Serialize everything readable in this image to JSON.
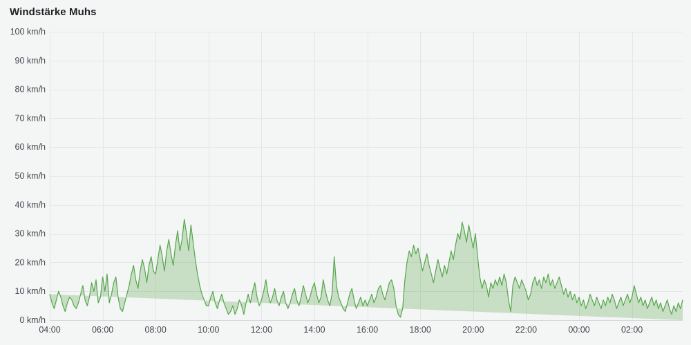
{
  "header": {
    "title": "Windstärke Muhs"
  },
  "colors": {
    "background": "#f4f5f5",
    "grid": "#e4e5e7",
    "axis_line": "#d8d9db",
    "line": "#56a64b",
    "fill_opacity": 0.28,
    "text": "#44474e",
    "title": "#202226"
  },
  "chart_data": {
    "type": "area",
    "title": "Windstärke Muhs",
    "unit": "km/h",
    "ylim": [
      0,
      100
    ],
    "grid": true,
    "legend": "none",
    "step_minutes": 5,
    "y_ticks": [
      {
        "value": 0,
        "label": "0 km/h"
      },
      {
        "value": 10,
        "label": "10 km/h"
      },
      {
        "value": 20,
        "label": "20 km/h"
      },
      {
        "value": 30,
        "label": "30 km/h"
      },
      {
        "value": 40,
        "label": "40 km/h"
      },
      {
        "value": 50,
        "label": "50 km/h"
      },
      {
        "value": 60,
        "label": "60 km/h"
      },
      {
        "value": 70,
        "label": "70 km/h"
      },
      {
        "value": 80,
        "label": "80 km/h"
      },
      {
        "value": 90,
        "label": "90 km/h"
      },
      {
        "value": 100,
        "label": "100 km/h"
      }
    ],
    "x_ticks": [
      {
        "minutes": 0,
        "label": "04:00"
      },
      {
        "minutes": 120,
        "label": "06:00"
      },
      {
        "minutes": 240,
        "label": "08:00"
      },
      {
        "minutes": 360,
        "label": "10:00"
      },
      {
        "minutes": 480,
        "label": "12:00"
      },
      {
        "minutes": 600,
        "label": "14:00"
      },
      {
        "minutes": 720,
        "label": "16:00"
      },
      {
        "minutes": 840,
        "label": "18:00"
      },
      {
        "minutes": 960,
        "label": "20:00"
      },
      {
        "minutes": 1080,
        "label": "22:00"
      },
      {
        "minutes": 1200,
        "label": "00:00"
      },
      {
        "minutes": 1320,
        "label": "02:00"
      }
    ],
    "values": [
      9,
      6,
      4,
      7,
      10,
      8,
      5,
      3,
      6,
      8,
      7,
      5,
      4,
      6,
      9,
      12,
      7,
      5,
      8,
      13,
      10,
      14,
      6,
      8,
      15,
      10,
      16,
      6,
      9,
      13,
      15,
      8,
      4,
      3,
      6,
      9,
      12,
      16,
      19,
      14,
      11,
      17,
      21,
      18,
      13,
      19,
      22,
      17,
      16,
      21,
      26,
      22,
      17,
      24,
      28,
      23,
      19,
      26,
      31,
      24,
      28,
      35,
      30,
      24,
      33,
      27,
      21,
      16,
      12,
      9,
      7,
      5,
      5,
      8,
      10,
      6,
      4,
      7,
      9,
      6,
      4,
      2,
      3,
      5,
      2,
      4,
      7,
      5,
      2,
      6,
      9,
      6,
      10,
      13,
      8,
      5,
      7,
      10,
      14,
      9,
      6,
      8,
      11,
      7,
      5,
      8,
      10,
      6,
      4,
      6,
      9,
      11,
      7,
      5,
      8,
      12,
      9,
      6,
      8,
      11,
      13,
      9,
      6,
      8,
      14,
      10,
      7,
      5,
      9,
      22,
      12,
      8,
      6,
      4,
      3,
      6,
      9,
      11,
      7,
      4,
      6,
      8,
      5,
      7,
      5,
      7,
      9,
      6,
      8,
      11,
      12,
      9,
      7,
      10,
      13,
      14,
      11,
      5,
      2,
      1,
      4,
      14,
      20,
      24,
      22,
      26,
      23,
      25,
      21,
      17,
      20,
      23,
      19,
      16,
      13,
      17,
      21,
      18,
      15,
      19,
      16,
      20,
      24,
      21,
      26,
      30,
      28,
      34,
      31,
      27,
      33,
      29,
      25,
      30,
      22,
      15,
      11,
      14,
      12,
      8,
      13,
      11,
      14,
      12,
      15,
      12,
      16,
      13,
      7,
      3,
      12,
      15,
      13,
      11,
      14,
      12,
      10,
      7,
      9,
      13,
      15,
      12,
      14,
      11,
      15,
      13,
      16,
      12,
      14,
      11,
      13,
      15,
      12,
      9,
      11,
      8,
      10,
      7,
      9,
      6,
      8,
      5,
      7,
      4,
      6,
      9,
      7,
      5,
      8,
      6,
      4,
      7,
      5,
      8,
      6,
      9,
      7,
      4,
      6,
      8,
      5,
      7,
      9,
      6,
      8,
      12,
      9,
      6,
      8,
      5,
      7,
      4,
      6,
      8,
      5,
      7,
      4,
      6,
      3,
      5,
      7,
      4,
      2,
      5,
      3,
      6,
      4,
      7
    ]
  }
}
